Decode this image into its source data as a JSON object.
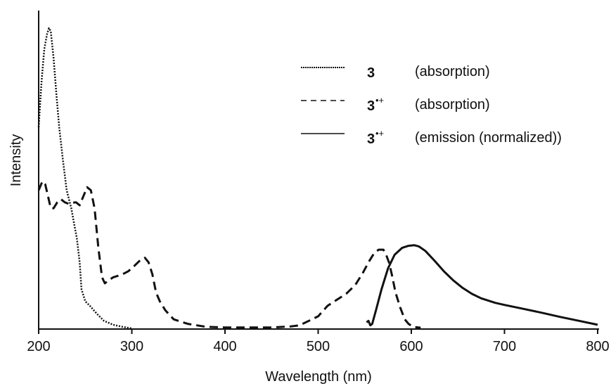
{
  "chart_data": {
    "type": "line",
    "xlabel": "Wavelength (nm)",
    "ylabel": "Intensity",
    "xlim": [
      200,
      800
    ],
    "ylim": [
      0,
      1
    ],
    "xticks": [
      200,
      300,
      400,
      500,
      600,
      700,
      800
    ],
    "x_tick_labels": [
      "200",
      "300",
      "400",
      "500",
      "600",
      "700",
      "800"
    ],
    "y_tick_labels": false,
    "grid": false,
    "legend_position": "top-right",
    "series": [
      {
        "compound": "3",
        "superscript": "",
        "name": "(absorption)",
        "line_style": "dotted",
        "color": "#111111",
        "points": [
          [
            200,
            0.67
          ],
          [
            203,
            0.82
          ],
          [
            206,
            0.93
          ],
          [
            209,
            0.98
          ],
          [
            211,
            1.0
          ],
          [
            213,
            0.99
          ],
          [
            216,
            0.9
          ],
          [
            219,
            0.78
          ],
          [
            222,
            0.67
          ],
          [
            226,
            0.56
          ],
          [
            230,
            0.46
          ],
          [
            235,
            0.4
          ],
          [
            238,
            0.35
          ],
          [
            241,
            0.3
          ],
          [
            244,
            0.22
          ],
          [
            246,
            0.13
          ],
          [
            250,
            0.09
          ],
          [
            255,
            0.075
          ],
          [
            262,
            0.05
          ],
          [
            270,
            0.025
          ],
          [
            280,
            0.012
          ],
          [
            290,
            0.005
          ],
          [
            300,
            0
          ]
        ]
      },
      {
        "compound": "3",
        "superscript": "•+",
        "name": "(absorption)",
        "line_style": "dashed",
        "color": "#111111",
        "points": [
          [
            200,
            0.46
          ],
          [
            204,
            0.49
          ],
          [
            207,
            0.48
          ],
          [
            210,
            0.44
          ],
          [
            213,
            0.4
          ],
          [
            216,
            0.4
          ],
          [
            220,
            0.42
          ],
          [
            224,
            0.43
          ],
          [
            228,
            0.42
          ],
          [
            232,
            0.415
          ],
          [
            236,
            0.418
          ],
          [
            240,
            0.42
          ],
          [
            244,
            0.41
          ],
          [
            248,
            0.44
          ],
          [
            252,
            0.47
          ],
          [
            256,
            0.46
          ],
          [
            260,
            0.4
          ],
          [
            264,
            0.27
          ],
          [
            268,
            0.17
          ],
          [
            271,
            0.15
          ],
          [
            275,
            0.16
          ],
          [
            280,
            0.17
          ],
          [
            285,
            0.175
          ],
          [
            290,
            0.18
          ],
          [
            296,
            0.19
          ],
          [
            300,
            0.2
          ],
          [
            305,
            0.215
          ],
          [
            310,
            0.23
          ],
          [
            314,
            0.235
          ],
          [
            318,
            0.22
          ],
          [
            322,
            0.18
          ],
          [
            326,
            0.12
          ],
          [
            330,
            0.09
          ],
          [
            336,
            0.06
          ],
          [
            345,
            0.03
          ],
          [
            360,
            0.015
          ],
          [
            380,
            0.005
          ],
          [
            400,
            0.003
          ],
          [
            450,
            0.003
          ],
          [
            470,
            0.006
          ],
          [
            480,
            0.01
          ],
          [
            490,
            0.025
          ],
          [
            500,
            0.04
          ],
          [
            510,
            0.075
          ],
          [
            520,
            0.095
          ],
          [
            530,
            0.115
          ],
          [
            540,
            0.145
          ],
          [
            548,
            0.185
          ],
          [
            555,
            0.225
          ],
          [
            560,
            0.25
          ],
          [
            565,
            0.262
          ],
          [
            570,
            0.262
          ],
          [
            573,
            0.245
          ],
          [
            576,
            0.22
          ],
          [
            579,
            0.18
          ],
          [
            583,
            0.12
          ],
          [
            588,
            0.07
          ],
          [
            593,
            0.03
          ],
          [
            597,
            0.015
          ],
          [
            602,
            0.005
          ],
          [
            610,
            0.002
          ]
        ]
      },
      {
        "compound": "3",
        "superscript": "•+",
        "name": "(emission (normalized))",
        "line_style": "solid",
        "color": "#111111",
        "points": [
          [
            552,
            0.02
          ],
          [
            554,
            0.025
          ],
          [
            556,
            0.01
          ],
          [
            558,
            0.015
          ],
          [
            562,
            0.06
          ],
          [
            568,
            0.13
          ],
          [
            575,
            0.2
          ],
          [
            582,
            0.245
          ],
          [
            590,
            0.268
          ],
          [
            597,
            0.275
          ],
          [
            603,
            0.277
          ],
          [
            608,
            0.273
          ],
          [
            615,
            0.258
          ],
          [
            625,
            0.225
          ],
          [
            635,
            0.19
          ],
          [
            645,
            0.16
          ],
          [
            655,
            0.135
          ],
          [
            665,
            0.115
          ],
          [
            675,
            0.1
          ],
          [
            690,
            0.085
          ],
          [
            700,
            0.078
          ],
          [
            720,
            0.065
          ],
          [
            740,
            0.052
          ],
          [
            760,
            0.038
          ],
          [
            780,
            0.025
          ],
          [
            800,
            0.012
          ]
        ]
      }
    ]
  }
}
